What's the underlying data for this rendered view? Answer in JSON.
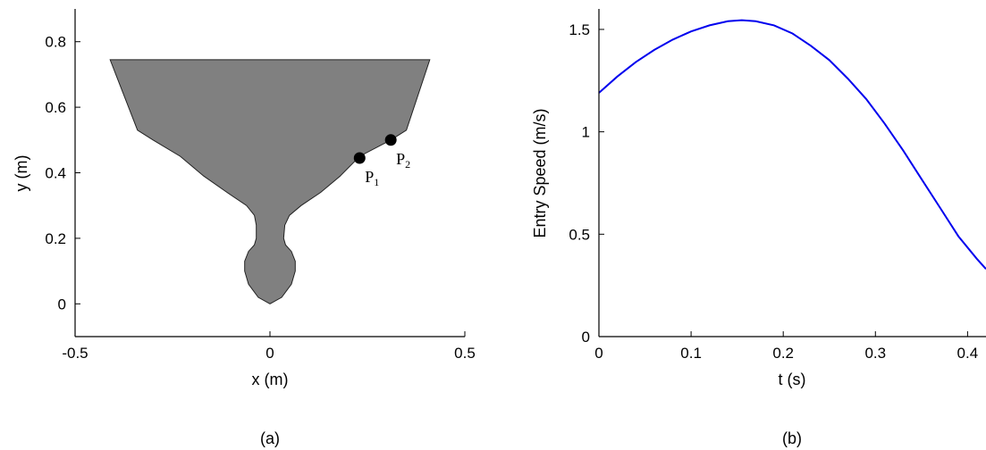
{
  "chart_data": [
    {
      "type": "area",
      "xlabel": "x (m)",
      "ylabel": "y (m)",
      "xlim": [
        -0.5,
        0.5
      ],
      "ylim": [
        -0.1,
        0.9
      ],
      "xticks": [
        "-0.5",
        "0",
        "0.5"
      ],
      "xtick_values": [
        -0.5,
        0,
        0.5
      ],
      "yticks": [
        "0",
        "0.2",
        "0.4",
        "0.6",
        "0.8"
      ],
      "ytick_values": [
        0,
        0.2,
        0.4,
        0.6,
        0.8
      ],
      "panel_label": "(a)",
      "fill_color": "#808080",
      "outline": [
        [
          0,
          0
        ],
        [
          0.03,
          0.02
        ],
        [
          0.055,
          0.06
        ],
        [
          0.065,
          0.1
        ],
        [
          0.065,
          0.13
        ],
        [
          0.055,
          0.16
        ],
        [
          0.04,
          0.18
        ],
        [
          0.035,
          0.2
        ],
        [
          0.038,
          0.24
        ],
        [
          0.05,
          0.27
        ],
        [
          0.08,
          0.3
        ],
        [
          0.13,
          0.34
        ],
        [
          0.18,
          0.39
        ],
        [
          0.23,
          0.45
        ],
        [
          0.31,
          0.5
        ],
        [
          0.35,
          0.53
        ],
        [
          0.41,
          0.745
        ],
        [
          -0.41,
          0.745
        ],
        [
          -0.34,
          0.53
        ],
        [
          -0.3,
          0.5
        ],
        [
          -0.23,
          0.45
        ],
        [
          -0.17,
          0.39
        ],
        [
          -0.11,
          0.34
        ],
        [
          -0.06,
          0.3
        ],
        [
          -0.04,
          0.27
        ],
        [
          -0.035,
          0.24
        ],
        [
          -0.035,
          0.2
        ],
        [
          -0.04,
          0.18
        ],
        [
          -0.055,
          0.16
        ],
        [
          -0.065,
          0.13
        ],
        [
          -0.065,
          0.1
        ],
        [
          -0.055,
          0.06
        ],
        [
          -0.03,
          0.02
        ],
        [
          0,
          0
        ]
      ],
      "points": [
        {
          "label": "P",
          "sub": "1",
          "x": 0.23,
          "y": 0.445
        },
        {
          "label": "P",
          "sub": "2",
          "x": 0.31,
          "y": 0.5
        }
      ]
    },
    {
      "type": "line",
      "xlabel": "t (s)",
      "ylabel": "Entry Speed (m/s)",
      "xlim": [
        0,
        0.42
      ],
      "ylim": [
        0,
        1.6
      ],
      "xticks": [
        "0",
        "0.1",
        "0.2",
        "0.3",
        "0.4"
      ],
      "xtick_values": [
        0,
        0.1,
        0.2,
        0.3,
        0.4
      ],
      "yticks": [
        "0",
        "0.5",
        "1",
        "1.5"
      ],
      "ytick_values": [
        0,
        0.5,
        1,
        1.5
      ],
      "panel_label": "(b)",
      "line_color": "#0000ee",
      "series": [
        {
          "x": [
            0,
            0.02,
            0.04,
            0.06,
            0.08,
            0.1,
            0.12,
            0.14,
            0.155,
            0.17,
            0.19,
            0.21,
            0.23,
            0.25,
            0.27,
            0.29,
            0.31,
            0.33,
            0.35,
            0.37,
            0.39,
            0.41,
            0.42
          ],
          "y": [
            1.19,
            1.27,
            1.34,
            1.4,
            1.45,
            1.49,
            1.52,
            1.54,
            1.545,
            1.54,
            1.52,
            1.48,
            1.42,
            1.35,
            1.26,
            1.16,
            1.04,
            0.91,
            0.77,
            0.63,
            0.49,
            0.38,
            0.33
          ]
        }
      ]
    }
  ]
}
